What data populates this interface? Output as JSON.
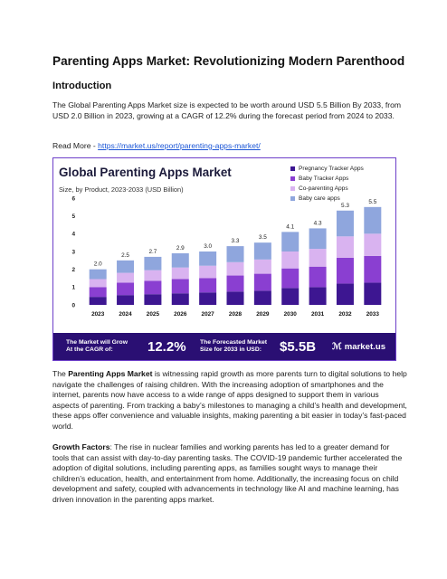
{
  "article": {
    "title": "Parenting Apps Market: Revolutionizing Modern Parenthood",
    "intro_heading": "Introduction",
    "intro_text": "The Global Parenting Apps Market size is expected to be worth around USD 5.5 Billion By 2033, from USD 2.0 Billion in 2023, growing at a CAGR of 12.2% during the forecast period from 2024 to 2033.",
    "read_more_label": "Read More - ",
    "read_more_link": "https://market.us/report/parenting-apps-market/",
    "para2_bold": "Parenting Apps Market",
    "para2_prefix": "The ",
    "para2_rest": " is witnessing rapid growth as more parents turn to digital solutions to help navigate the challenges of raising children. With the increasing adoption of smartphones and the internet, parents now have access to a wide range of apps designed to support them in various aspects of parenting. From tracking a baby’s milestones to managing a child’s health and development, these apps offer convenience and valuable insights, making parenting a bit easier in today’s fast-paced world.",
    "para3_bold": "Growth Factors",
    "para3_rest": ": The rise in nuclear families and working parents has led to a greater demand for tools that can assist with day-to-day parenting tasks. The COVID-19 pandemic further accelerated the adoption of digital solutions, including parenting apps, as families sought ways to manage their children’s education, health, and entertainment from home. Additionally, the increasing focus on child development and safety, coupled with advancements in technology like AI and machine learning, has driven innovation in the parenting apps market."
  },
  "infographic": {
    "banner": {
      "cagr_label_line1": "The Market will Grow",
      "cagr_label_line2": "At the CAGR of:",
      "cagr_value": "12.2%",
      "forecast_label_line1": "The Forecasted Market",
      "forecast_label_line2": "Size for 2033 in USD:",
      "forecast_value": "$5.5B",
      "logo_mark": "ℳ",
      "logo_text": "market.us"
    },
    "colors": {
      "banner_bg": "#2a0f73",
      "border": "#6d3fc9"
    }
  },
  "chart_data": {
    "type": "bar",
    "stacked": true,
    "title": "Global Parenting Apps Market",
    "subtitle": "Size, by Product, 2023-2033 (USD Billion)",
    "categories": [
      "2023",
      "2024",
      "2025",
      "2026",
      "2027",
      "2028",
      "2029",
      "2030",
      "2031",
      "2032",
      "2033"
    ],
    "totals": [
      2.0,
      2.5,
      2.7,
      2.9,
      3.0,
      3.3,
      3.5,
      4.1,
      4.3,
      5.3,
      5.5
    ],
    "series": [
      {
        "name": "Pregnancy Tracker Apps",
        "color": "#3d1691",
        "values": [
          0.45,
          0.55,
          0.6,
          0.65,
          0.7,
          0.75,
          0.8,
          0.95,
          1.0,
          1.2,
          1.25
        ]
      },
      {
        "name": "Baby Tracker Apps",
        "color": "#8a3fd1",
        "values": [
          0.55,
          0.7,
          0.75,
          0.8,
          0.8,
          0.9,
          0.95,
          1.1,
          1.15,
          1.45,
          1.5
        ]
      },
      {
        "name": "Co-parenting Apps",
        "color": "#d9b3f0",
        "values": [
          0.45,
          0.55,
          0.6,
          0.65,
          0.7,
          0.75,
          0.8,
          0.95,
          1.0,
          1.2,
          1.25
        ]
      },
      {
        "name": "Baby care apps",
        "color": "#8fa6dd",
        "values": [
          0.55,
          0.7,
          0.75,
          0.8,
          0.8,
          0.9,
          0.95,
          1.1,
          1.15,
          1.45,
          1.5
        ]
      }
    ],
    "ylim": [
      0,
      6
    ],
    "yticks": [
      "0",
      "1",
      "2",
      "3",
      "4",
      "5",
      "6"
    ],
    "legend_position": "top-right",
    "grid": false
  }
}
